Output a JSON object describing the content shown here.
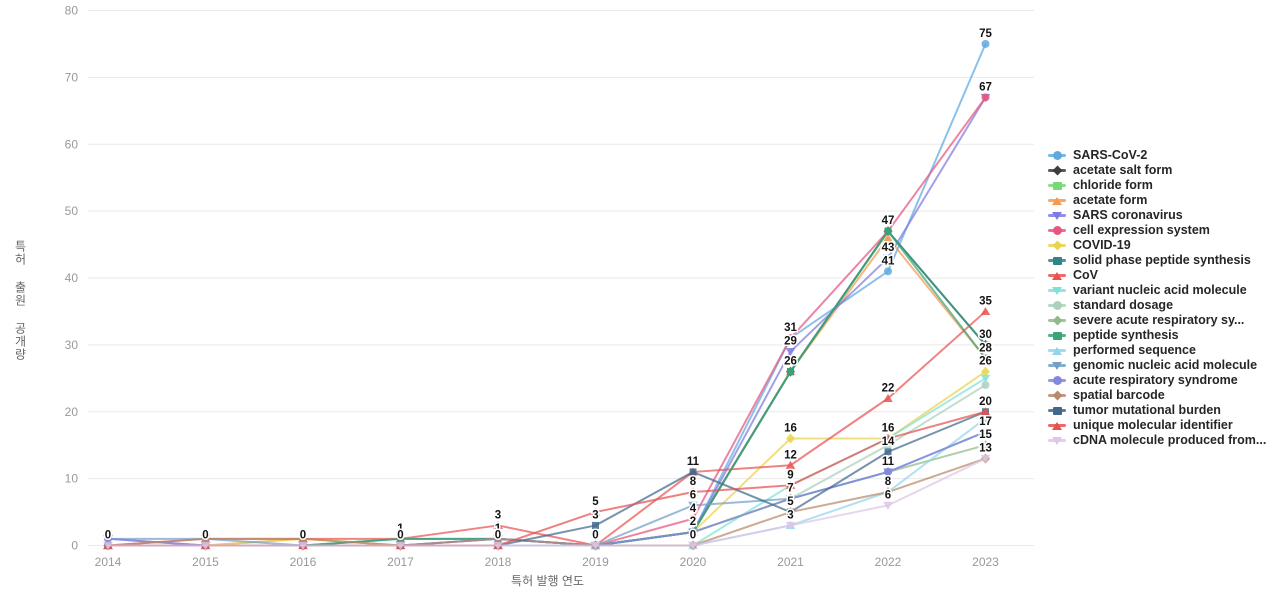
{
  "chart_data": {
    "type": "line",
    "title": "",
    "xlabel": "특허 발행 연도",
    "ylabel": "특허 출원 공개량",
    "x": [
      2014,
      2015,
      2016,
      2017,
      2018,
      2019,
      2020,
      2021,
      2022,
      2023
    ],
    "yticks": [
      0,
      10,
      20,
      30,
      40,
      50,
      60,
      70,
      80
    ],
    "ylim": [
      0,
      80
    ],
    "grid": "horizontal",
    "legend_position": "right",
    "series": [
      {
        "name": "SARS-CoV-2",
        "color": "#5fa9e0",
        "marker": "circle",
        "values": [
          0,
          0,
          0,
          0,
          0,
          0,
          2,
          31,
          41,
          75
        ]
      },
      {
        "name": "acetate salt form",
        "color": "#3d3d3d",
        "marker": "diamond",
        "values": [
          0,
          0,
          0,
          0,
          0,
          0,
          2,
          26,
          47,
          30
        ]
      },
      {
        "name": "chloride form",
        "color": "#77d877",
        "marker": "square",
        "values": [
          0,
          0,
          0,
          0,
          0,
          0,
          2,
          26,
          47,
          30
        ]
      },
      {
        "name": "acetate form",
        "color": "#f5994d",
        "marker": "triangle",
        "values": [
          0,
          0,
          1,
          0,
          0,
          0,
          2,
          26,
          46,
          28
        ]
      },
      {
        "name": "SARS coronavirus",
        "color": "#807ae0",
        "marker": "triangle-down",
        "values": [
          1,
          0,
          0,
          0,
          1,
          0,
          2,
          29,
          43,
          67
        ]
      },
      {
        "name": "cell expression system",
        "color": "#e85580",
        "marker": "circle",
        "values": [
          0,
          0,
          0,
          0,
          0,
          0,
          4,
          31,
          47,
          67
        ]
      },
      {
        "name": "COVID-19",
        "color": "#ead34e",
        "marker": "diamond",
        "values": [
          0,
          0,
          1,
          0,
          0,
          0,
          2,
          16,
          16,
          26
        ]
      },
      {
        "name": "solid phase peptide synthesis",
        "color": "#2d8585",
        "marker": "square",
        "values": [
          0,
          0,
          0,
          1,
          1,
          0,
          2,
          26,
          47,
          30
        ]
      },
      {
        "name": "CoV",
        "color": "#ea5252",
        "marker": "triangle",
        "values": [
          0,
          1,
          1,
          1,
          3,
          0,
          11,
          12,
          22,
          35
        ]
      },
      {
        "name": "variant nucleic acid molecule",
        "color": "#80e0d8",
        "marker": "triangle-down",
        "values": [
          0,
          0,
          0,
          0,
          0,
          0,
          0,
          9,
          16,
          25
        ]
      },
      {
        "name": "standard dosage",
        "color": "#abd1bd",
        "marker": "circle",
        "values": [
          0,
          0,
          0,
          0,
          0,
          0,
          2,
          7,
          15,
          24
        ]
      },
      {
        "name": "severe acute respiratory sy...",
        "color": "#90ba88",
        "marker": "diamond",
        "values": [
          0,
          0,
          0,
          0,
          0,
          0,
          2,
          7,
          11,
          15
        ]
      },
      {
        "name": "peptide synthesis",
        "color": "#3aa378",
        "marker": "square",
        "values": [
          0,
          0,
          0,
          1,
          1,
          0,
          2,
          26,
          47,
          28
        ]
      },
      {
        "name": "performed sequence",
        "color": "#92d4ef",
        "marker": "triangle",
        "values": [
          0,
          0,
          0,
          0,
          0,
          0,
          0,
          3,
          8,
          19
        ]
      },
      {
        "name": "genomic nucleic acid molecule",
        "color": "#739fc7",
        "marker": "triangle-down",
        "values": [
          1,
          1,
          0,
          0,
          1,
          0,
          6,
          7,
          11,
          17
        ]
      },
      {
        "name": "acute respiratory syndrome",
        "color": "#8486e2",
        "marker": "circle",
        "values": [
          1,
          0,
          0,
          0,
          1,
          0,
          2,
          7,
          11,
          17
        ]
      },
      {
        "name": "spatial barcode",
        "color": "#b8896a",
        "marker": "diamond",
        "values": [
          0,
          1,
          1,
          0,
          1,
          0,
          0,
          5,
          8,
          13
        ]
      },
      {
        "name": "tumor mutational burden",
        "color": "#41698c",
        "marker": "square",
        "values": [
          0,
          0,
          0,
          0,
          0,
          3,
          11,
          5,
          14,
          20
        ]
      },
      {
        "name": "unique molecular identifier",
        "color": "#e55050",
        "marker": "triangle",
        "values": [
          0,
          0,
          0,
          0,
          0,
          5,
          8,
          9,
          16,
          20
        ]
      },
      {
        "name": "cDNA molecule produced from...",
        "color": "#ddc6e6",
        "marker": "triangle-down",
        "values": [
          0,
          0,
          0,
          0,
          0,
          0,
          0,
          3,
          6,
          13
        ]
      }
    ],
    "point_labels": {
      "2014": [
        0
      ],
      "2015": [
        0
      ],
      "2016": [
        0
      ],
      "2017": [
        1,
        0
      ],
      "2018": [
        3,
        1,
        0
      ],
      "2019": [
        5,
        3,
        0
      ],
      "2020": [
        11,
        8,
        6,
        4,
        2,
        0
      ],
      "2021": [
        31,
        29,
        26,
        16,
        12,
        9,
        7,
        5,
        3
      ],
      "2022": [
        47,
        43,
        41,
        22,
        16,
        14,
        11,
        8,
        6
      ],
      "2023": [
        75,
        67,
        35,
        30,
        28,
        26,
        20,
        17,
        15,
        13
      ]
    }
  },
  "colors": {
    "grid": "#e9e9e9",
    "tick_label": "#999999",
    "axis_title": "#666666",
    "point_label": "#141414",
    "legend_text": "#262626"
  }
}
